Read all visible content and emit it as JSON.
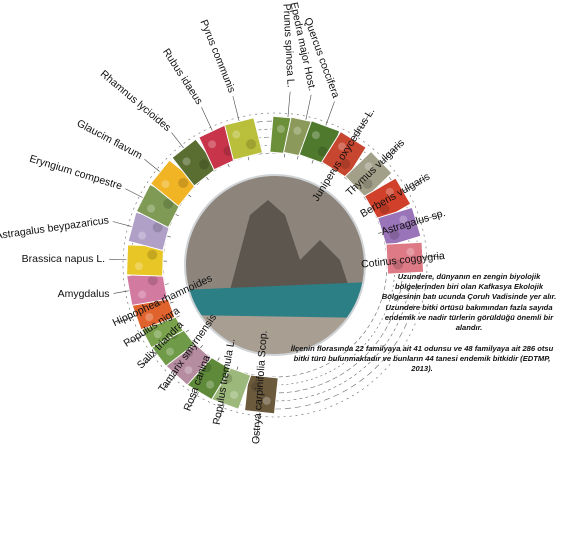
{
  "species": [
    {
      "label": "Prunus spinosa L.",
      "color": "#6c8f3a"
    },
    {
      "label": "Epedra major Host.",
      "color": "#8b9a5a"
    },
    {
      "label": "Quercus coccifera",
      "color": "#4f7a2e"
    },
    {
      "label": "Juniperus oxycedrus L.",
      "color": "#c7462f"
    },
    {
      "label": "Thymus vulgaris",
      "color": "#a3a08a"
    },
    {
      "label": "Berberis vulgaris",
      "color": "#d0402a"
    },
    {
      "label": "Astragalus sp.",
      "color": "#9a74b8"
    },
    {
      "label": "Cotinus coggygria",
      "color": "#dd7a86"
    },
    {
      "label": "Ostrya carpinifolia Scop.",
      "color": "#6b5a3c"
    },
    {
      "label": "Populus tremula L.",
      "color": "#9cb87a"
    },
    {
      "label": "Rosa canina",
      "color": "#5f8a3a"
    },
    {
      "label": "Tamarix smyrnensis",
      "color": "#b58ca0"
    },
    {
      "label": "Salix triandra",
      "color": "#6f9a48"
    },
    {
      "label": "Populus nigra",
      "color": "#7aa24c"
    },
    {
      "label": "Hippophea rhamnoides",
      "color": "#e0632d"
    },
    {
      "label": "Amygdalus",
      "color": "#d27aa0"
    },
    {
      "label": "Brassica napus L.",
      "color": "#e8c625"
    },
    {
      "label": "Astragalus beypazaricus",
      "color": "#b0a0c8"
    },
    {
      "label": "Eryngium compestre",
      "color": "#7f9a55"
    },
    {
      "label": "Glaucim flavum",
      "color": "#f0b424"
    },
    {
      "label": "Rhamnus lycioides",
      "color": "#5a6e32"
    },
    {
      "label": "Rubus idaeus",
      "color": "#c8344a"
    },
    {
      "label": "Pyrus communis",
      "color": "#b9bf3a"
    }
  ],
  "center_photo": {
    "sky": "#dfe3e6",
    "mountain": "#8d857b",
    "ridge": "#5d564f",
    "water": "#2d7f86",
    "shore": "#a89e92"
  },
  "description": {
    "p1": "Uzundere, dünyanın en zengin biyolojik bölgelerinden biri olan Kafkasya Ekolojik Bölgesinin batı ucunda Çoruh Vadisinde yer alır. Uzundere bitki örtüsü bakımından fazla sayıda endemik ve nadir türlerin görüldüğü önemli bir alandır.",
    "p2": "İlçenin florasında 22 familyaya ait 41 odunsu ve 48 familyaya ait 286 otsu bitki türü bulunmaktadır ve bunların 44 tanesi endemik bitkidir (EDTMP, 2013)."
  }
}
